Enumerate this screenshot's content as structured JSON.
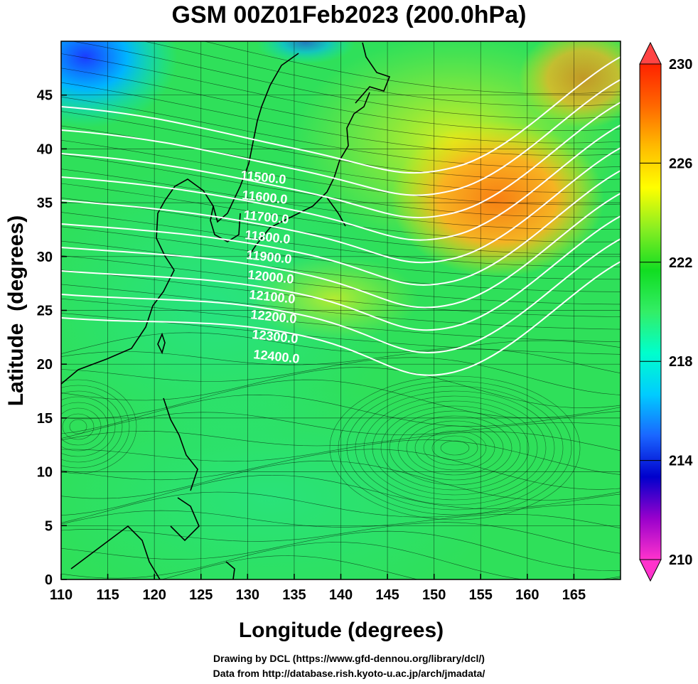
{
  "title": "GSM 00Z01Feb2023 (200.0hPa)",
  "xaxis": {
    "label": "Longitude (degrees)",
    "min": 110,
    "max": 170,
    "ticks": [
      110,
      115,
      120,
      125,
      130,
      135,
      140,
      145,
      150,
      155,
      160,
      165
    ]
  },
  "yaxis": {
    "label": "Latitude  (degrees)",
    "min": 0,
    "max": 50,
    "ticks": [
      0,
      5,
      10,
      15,
      20,
      25,
      30,
      35,
      40,
      45
    ]
  },
  "colorbar": {
    "min": 210,
    "max": 230,
    "ticks": [
      210,
      214,
      218,
      222,
      226,
      230
    ],
    "colors": [
      "#ff33cc",
      "#9900cc",
      "#0000cc",
      "#1a66ff",
      "#00ccff",
      "#00ffcc",
      "#33ee66",
      "#11dd22",
      "#88ee22",
      "#ffff00",
      "#ffbb00",
      "#ff6600",
      "#ff2200"
    ]
  },
  "height_contours": [
    {
      "label": "11500.0",
      "value": 11500,
      "color": "#ffffff"
    },
    {
      "label": "11600.0",
      "value": 11600,
      "color": "#ffffff"
    },
    {
      "label": "11700.0",
      "value": 11700,
      "color": "#ffffff"
    },
    {
      "label": "11800.0",
      "value": 11800,
      "color": "#ffffff"
    },
    {
      "label": "11900.0",
      "value": 11900,
      "color": "#ffffff"
    },
    {
      "label": "12000.0",
      "value": 12000,
      "color": "#ffffff"
    },
    {
      "label": "12100.0",
      "value": 12100,
      "color": "#ffffff"
    },
    {
      "label": "12200.0",
      "value": 12200,
      "color": "#ffffff"
    },
    {
      "label": "12300.0",
      "value": 12300,
      "color": "#ffffff"
    },
    {
      "label": "12400.0",
      "value": 12400,
      "color": "#ffffff"
    }
  ],
  "credits": {
    "line1": "Drawing by DCL (https://www.gfd-dennou.org/library/dcl/)",
    "line2": "Data from http://database.rish.kyoto-u.ac.jp/arch/jmadata/"
  }
}
